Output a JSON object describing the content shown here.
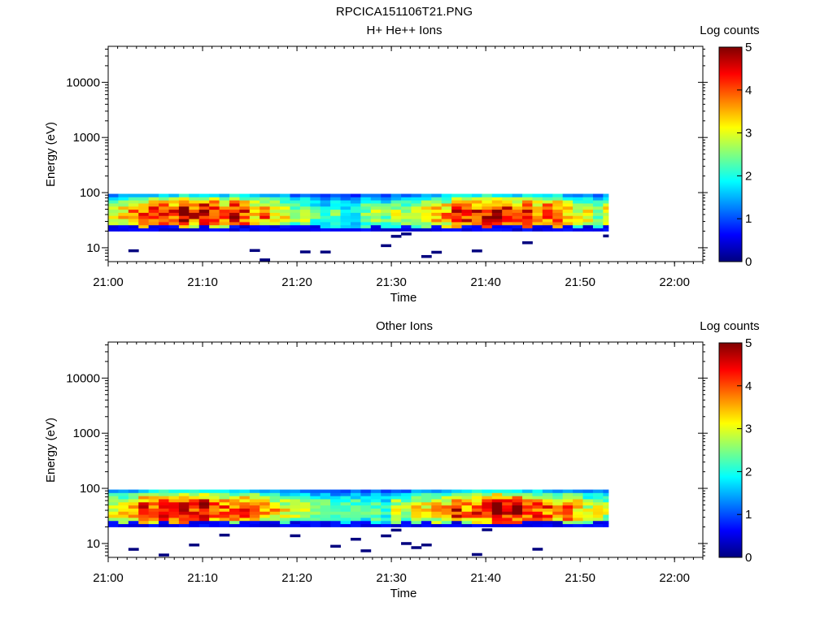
{
  "figure_title": "RPCICA151106T21.PNG",
  "chart_data": [
    {
      "type": "heatmap",
      "title": "H+ He++ Ions",
      "xlabel": "Time",
      "ylabel": "Energy (eV)",
      "x_ticks": [
        "21:00",
        "21:10",
        "21:20",
        "21:30",
        "21:40",
        "21:50",
        "22:00"
      ],
      "x_range": [
        "21:00",
        "22:03"
      ],
      "y_scale": "log",
      "y_ticks": [
        10,
        100,
        1000,
        10000
      ],
      "y_tick_labels": [
        "10",
        "100",
        "1000",
        "10000"
      ],
      "y_range": [
        5.6,
        45000
      ],
      "colorbar_label": "Log counts",
      "colorbar_range": [
        0,
        5
      ],
      "colorbar_ticks": [
        "0",
        "1",
        "2",
        "3",
        "4",
        "5"
      ],
      "data_time_range": [
        "21:00",
        "21:53"
      ],
      "dense_energy_range_eV": [
        20,
        95
      ],
      "typical_peak_log_counts": 3.5,
      "sparse_low_energy_events": true
    },
    {
      "type": "heatmap",
      "title": "Other Ions",
      "xlabel": "Time",
      "ylabel": "Energy (eV)",
      "x_ticks": [
        "21:00",
        "21:10",
        "21:20",
        "21:30",
        "21:40",
        "21:50",
        "22:00"
      ],
      "x_range": [
        "21:00",
        "22:03"
      ],
      "y_scale": "log",
      "y_ticks": [
        10,
        100,
        1000,
        10000
      ],
      "y_tick_labels": [
        "10",
        "100",
        "1000",
        "10000"
      ],
      "y_range": [
        5.6,
        45000
      ],
      "colorbar_label": "Log counts",
      "colorbar_range": [
        0,
        5
      ],
      "colorbar_ticks": [
        "0",
        "1",
        "2",
        "3",
        "4",
        "5"
      ],
      "data_time_range": [
        "21:00",
        "21:53"
      ],
      "dense_energy_range_eV": [
        20,
        95
      ],
      "typical_peak_log_counts": 3.5,
      "sparse_low_energy_events": true
    }
  ]
}
